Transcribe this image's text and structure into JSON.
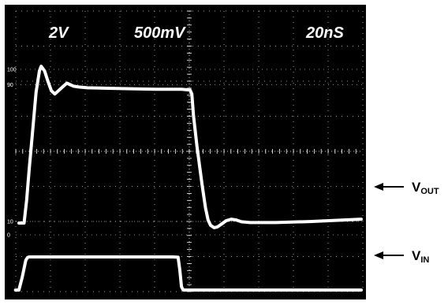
{
  "chart_data": {
    "type": "line",
    "title": "",
    "header": {
      "ch1_scale": "2V",
      "ch2_scale": "500mV",
      "timebase": "20nS"
    },
    "scale_marks": [
      "100",
      "90",
      "10",
      "0"
    ],
    "grid": true,
    "x_unit": "ns",
    "x_range": [
      0,
      200
    ],
    "grid_divisions": {
      "x": 10,
      "y": 8
    },
    "series": [
      {
        "name": "VOUT",
        "label_main": "V",
        "label_sub": "OUT",
        "points": [
          [
            0,
            0
          ],
          [
            3,
            0
          ],
          [
            4.5,
            15
          ],
          [
            6,
            35
          ],
          [
            8,
            60
          ],
          [
            10,
            85
          ],
          [
            12,
            99
          ],
          [
            13,
            102
          ],
          [
            15,
            99
          ],
          [
            17,
            92
          ],
          [
            19,
            86
          ],
          [
            21,
            84
          ],
          [
            23,
            86
          ],
          [
            26,
            89
          ],
          [
            28,
            91
          ],
          [
            30,
            90
          ],
          [
            32,
            89
          ],
          [
            35,
            88.5
          ],
          [
            40,
            88
          ],
          [
            60,
            87.5
          ],
          [
            80,
            87
          ],
          [
            95,
            87
          ],
          [
            100,
            86.5
          ],
          [
            101,
            84
          ],
          [
            102,
            70
          ],
          [
            104,
            50
          ],
          [
            107,
            25
          ],
          [
            109,
            10
          ],
          [
            110.5,
            2
          ],
          [
            112,
            -1.5
          ],
          [
            114,
            -3
          ],
          [
            116,
            -2.5
          ],
          [
            118,
            -1
          ],
          [
            121,
            1.5
          ],
          [
            124,
            2.5
          ],
          [
            127,
            2
          ],
          [
            130,
            0.8
          ],
          [
            135,
            0.3
          ],
          [
            150,
            0.3
          ],
          [
            170,
            1
          ],
          [
            200,
            2.5
          ]
        ]
      },
      {
        "name": "VIN",
        "label_main": "V",
        "label_sub": "IN",
        "points": [
          [
            -2,
            0
          ],
          [
            0,
            0
          ],
          [
            2,
            40
          ],
          [
            4,
            90
          ],
          [
            5,
            98
          ],
          [
            6,
            100
          ],
          [
            90,
            100
          ],
          [
            93,
            99
          ],
          [
            94,
            60
          ],
          [
            95,
            10
          ],
          [
            96,
            0
          ],
          [
            200,
            0
          ]
        ]
      }
    ]
  }
}
